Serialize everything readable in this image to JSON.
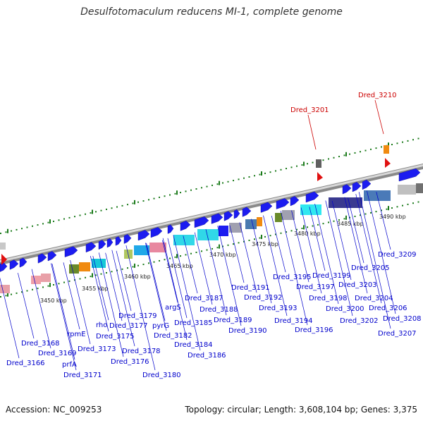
{
  "title": "Desulfotomaculum reducens MI-1, complete genome",
  "footer": {
    "accession": "Accession: NC_009253",
    "summary": "Topology: circular; Length: 3,608,104 bp; Genes: 3,375"
  },
  "colors": {
    "backbone": "#8a8a8a",
    "gene_forward": "#1c1cf0",
    "gene_label": "#0000cc",
    "highlight": "#cc0000",
    "tick": "#1a7a1a"
  },
  "kbp_ticks": [
    "3450 kbp",
    "3455 kbp",
    "3460 kbp",
    "3465 kbp",
    "3470 kbp",
    "3475 kbp",
    "3480 kbp",
    "3485 kbp",
    "3490 kbp"
  ],
  "highlight_genes": [
    "Dred_3201",
    "Dred_3210"
  ],
  "gene_labels": [
    "Dred_3166",
    "Dred_3168",
    "Dred_3169",
    "prfA",
    "rpmE",
    "Dred_3171",
    "Dred_3173",
    "rho",
    "Dred_3175",
    "Dred_3177",
    "Dred_3176",
    "Dred_3178",
    "Dred_3179",
    "Dred_3180",
    "pyrG",
    "argS",
    "Dred_3182",
    "Dred_3184",
    "Dred_3185",
    "Dred_3186",
    "Dred_3187",
    "Dred_3188",
    "Dred_3189",
    "Dred_3190",
    "Dred_3191",
    "Dred_3192",
    "Dred_3193",
    "Dred_3194",
    "Dred_3195",
    "Dred_3196",
    "Dred_3197",
    "Dred_3198",
    "Dred_3199",
    "Dred_3200",
    "Dred_3202",
    "Dred_3203",
    "Dred_3204",
    "Dred_3205",
    "Dred_3206",
    "Dred_3207",
    "Dred_3208",
    "Dred_3209"
  ]
}
